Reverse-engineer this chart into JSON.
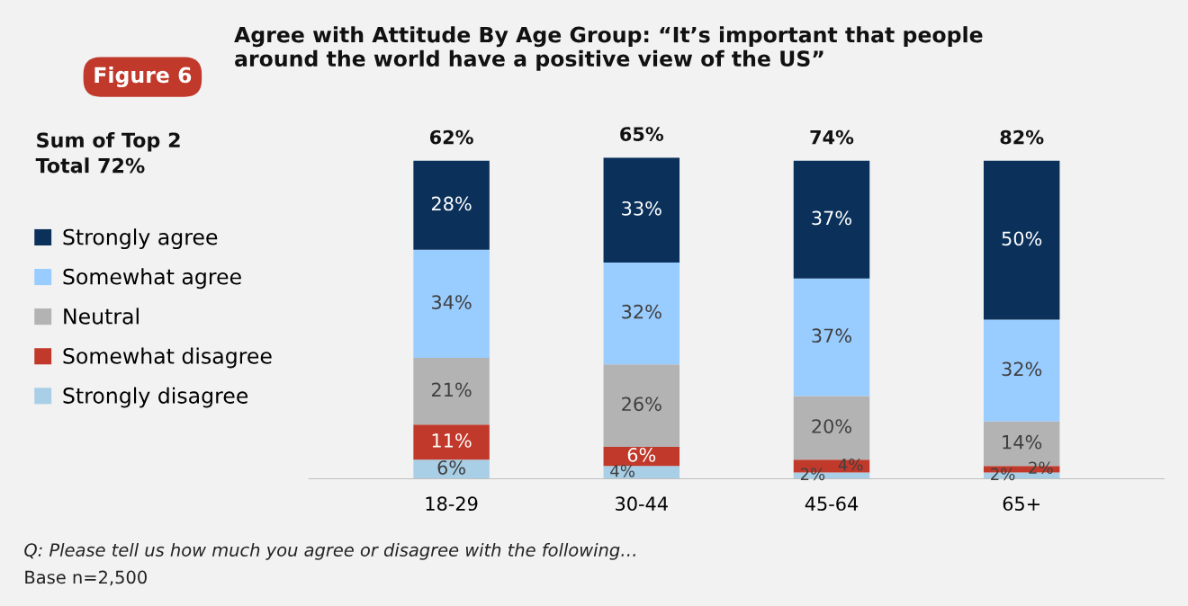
{
  "chart_data": {
    "type": "bar",
    "stacked": true,
    "title": "Agree with Attitude By Age Group: “It’s important that people\naround the world have a positive view of the US”",
    "categories": [
      "18-29",
      "30-44",
      "45-64",
      "65+"
    ],
    "series": [
      {
        "name": "Strongly disagree",
        "color": "#a8cfe6",
        "values": [
          6,
          4,
          2,
          2
        ],
        "value_labels": [
          "6%",
          "4%",
          "2%",
          "2%"
        ]
      },
      {
        "name": "Somewhat disagree",
        "color": "#c0392b",
        "values": [
          11,
          6,
          4,
          2
        ],
        "value_labels": [
          "11%",
          "6%",
          "4%",
          "2%"
        ]
      },
      {
        "name": "Neutral",
        "color": "#b3b3b3",
        "values": [
          21,
          26,
          20,
          14
        ],
        "value_labels": [
          "21%",
          "26%",
          "20%",
          "14%"
        ]
      },
      {
        "name": "Somewhat agree",
        "color": "#99ccff",
        "values": [
          34,
          32,
          37,
          32
        ],
        "value_labels": [
          "34%",
          "32%",
          "37%",
          "32%"
        ]
      },
      {
        "name": "Strongly agree",
        "color": "#0b315b",
        "values": [
          28,
          33,
          37,
          50
        ],
        "value_labels": [
          "28%",
          "33%",
          "37%",
          "50%"
        ]
      }
    ],
    "legend": "left",
    "annotations": [
      "62%",
      "65%",
      "74%",
      "82%",
      "Figure 6",
      "Sum of Top 2\nTotal 72%",
      "Q: Please tell us how much you agree or disagree with the following…",
      "Base n=2,500"
    ]
  }
}
